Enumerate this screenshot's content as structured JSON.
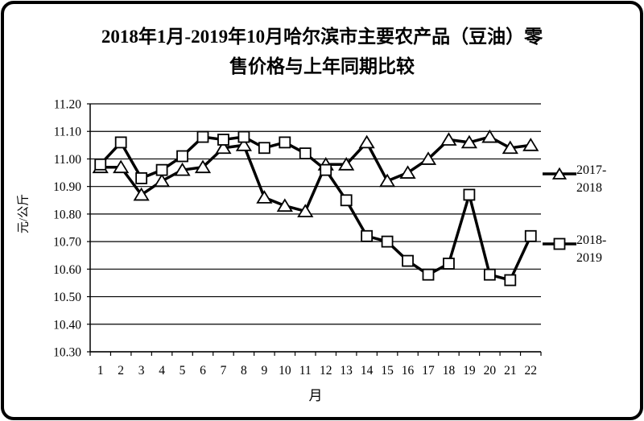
{
  "colors": {
    "line": "#000000",
    "marker_fill": "#ffffff",
    "background": "#ffffff",
    "frame": "#000000"
  },
  "chart_data": {
    "type": "line",
    "title": "2018年1月-2019年10月哈尔滨市主要农产品（豆油）零售价格与上年同期比较",
    "title_lines": [
      "2018年1月-2019年10月哈尔滨市主要农产品（豆油）零",
      "售价格与上年同期比较"
    ],
    "xlabel": "月",
    "ylabel": "元/公斤",
    "x": [
      "1",
      "2",
      "3",
      "4",
      "5",
      "6",
      "7",
      "8",
      "9",
      "10",
      "11",
      "12",
      "13",
      "14",
      "15",
      "16",
      "17",
      "18",
      "19",
      "20",
      "21",
      "22"
    ],
    "y_ticks": [
      "11.20",
      "11.10",
      "11.00",
      "10.90",
      "10.80",
      "10.70",
      "10.60",
      "10.50",
      "10.40",
      "10.30"
    ],
    "ylim": [
      10.3,
      11.2
    ],
    "ytick_step": 0.1,
    "grid": true,
    "legend_position": "right",
    "series": [
      {
        "name": "2017-2018",
        "marker": "triangle",
        "values": [
          10.97,
          10.97,
          10.87,
          10.92,
          10.96,
          10.97,
          11.04,
          11.05,
          10.86,
          10.83,
          10.81,
          10.98,
          10.98,
          11.06,
          10.92,
          10.95,
          11.0,
          11.07,
          11.06,
          11.08,
          11.04,
          11.05
        ]
      },
      {
        "name": "2018-2019",
        "marker": "square",
        "values": [
          10.98,
          11.06,
          10.93,
          10.96,
          11.01,
          11.08,
          11.07,
          11.08,
          11.04,
          11.06,
          11.02,
          10.96,
          10.85,
          10.72,
          10.7,
          10.63,
          10.58,
          10.62,
          10.87,
          10.58,
          10.56,
          10.72
        ]
      }
    ]
  }
}
